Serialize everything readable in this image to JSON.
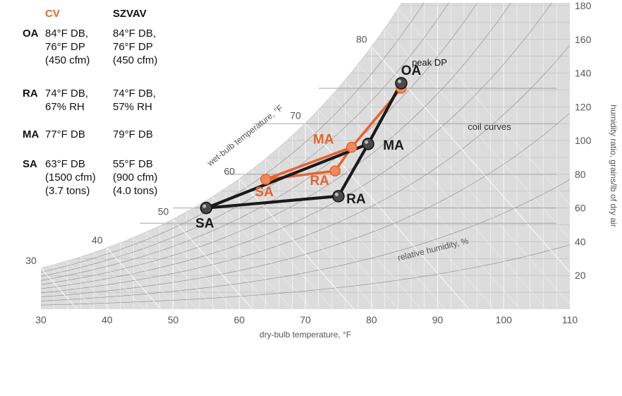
{
  "colors": {
    "cv": "#e8622c",
    "szvav": "#1a1a1a",
    "chart_area": "#dcdcdc",
    "grid": "#ffffff",
    "curve": "#8a8a8a",
    "axis_text": "#555555"
  },
  "table": {
    "headers": {
      "cv": "CV",
      "szvav": "SZVAV"
    },
    "rows": [
      {
        "label": "OA",
        "cv": [
          "84°F DB,",
          "76°F DP",
          "(450 cfm)"
        ],
        "szvav": [
          "84°F DB,",
          "76°F DP",
          "(450 cfm)"
        ]
      },
      {
        "label": "RA",
        "cv": [
          "74°F DB,",
          "67% RH"
        ],
        "szvav": [
          "74°F DB,",
          "57% RH"
        ]
      },
      {
        "label": "MA",
        "cv": [
          "77°F DB"
        ],
        "szvav": [
          "79°F DB"
        ]
      },
      {
        "label": "SA",
        "cv": [
          "63°F DB",
          "(1500 cfm)",
          "(3.7 tons)"
        ],
        "szvav": [
          "55°F DB",
          "(900 cfm)",
          "(4.0 tons)"
        ]
      }
    ]
  },
  "chart_data": {
    "type": "scatter",
    "title": "",
    "xlabel": "dry-bulb temperature, °F",
    "ylabel": "humidity ratio, grains/lb of dry air",
    "xlim": [
      30,
      110
    ],
    "ylim": [
      0,
      180
    ],
    "x_ticks": [
      30,
      40,
      50,
      60,
      70,
      80,
      90,
      100,
      110
    ],
    "y_ticks": [
      20,
      40,
      60,
      80,
      100,
      120,
      140,
      160,
      180
    ],
    "wet_bulb_label": "wet-bulb temperature, °F",
    "wet_bulb_ticks": [
      30,
      40,
      50,
      60,
      70,
      80
    ],
    "rh_label": "relative humidity, %",
    "annotations": [
      "peak DP",
      "coil curves"
    ],
    "series": [
      {
        "name": "CV",
        "color": "#e8622c",
        "points": [
          {
            "label": "OA",
            "x": 84.5,
            "y": 131
          },
          {
            "label": "MA",
            "x": 77,
            "y": 96
          },
          {
            "label": "SA",
            "x": 64,
            "y": 77
          },
          {
            "label": "RA",
            "x": 74.5,
            "y": 82
          }
        ]
      },
      {
        "name": "SZVAV",
        "color": "#1a1a1a",
        "points": [
          {
            "label": "OA",
            "x": 84.5,
            "y": 134
          },
          {
            "label": "MA",
            "x": 79.5,
            "y": 98
          },
          {
            "label": "SA",
            "x": 55,
            "y": 60
          },
          {
            "label": "RA",
            "x": 75,
            "y": 67
          }
        ]
      }
    ]
  }
}
